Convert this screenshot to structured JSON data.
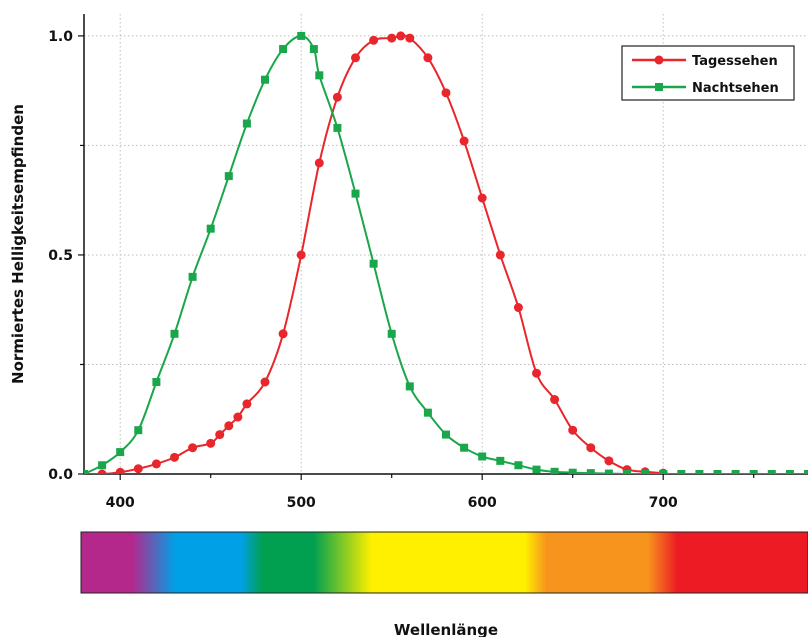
{
  "chart_data": {
    "type": "line",
    "title": "",
    "xlabel": "Wellenlänge",
    "ylabel": "Normiertes Helligkeitsempfinden",
    "xlim": [
      380,
      780
    ],
    "ylim": [
      0,
      1.05
    ],
    "x_ticks": [
      400,
      500,
      600,
      700
    ],
    "x_tick_labels": [
      "400",
      "500",
      "600",
      "700"
    ],
    "y_ticks": [
      0,
      0.5,
      1
    ],
    "y_tick_labels": [
      "0.0",
      "0.5",
      "1.0"
    ],
    "grid": true,
    "legend_position": "top-right",
    "series": [
      {
        "name": "Tagessehen",
        "color": "#e8262b",
        "marker": "circle",
        "x": [
          380,
          390,
          400,
          410,
          420,
          430,
          440,
          450,
          455,
          460,
          465,
          470,
          480,
          490,
          500,
          510,
          520,
          530,
          540,
          550,
          555,
          560,
          570,
          580,
          590,
          600,
          610,
          620,
          630,
          640,
          650,
          660,
          670,
          680,
          690,
          700
        ],
        "y": [
          0.0,
          0.0,
          0.004,
          0.012,
          0.023,
          0.038,
          0.06,
          0.07,
          0.09,
          0.11,
          0.13,
          0.16,
          0.21,
          0.32,
          0.5,
          0.71,
          0.86,
          0.95,
          0.99,
          0.995,
          1.0,
          0.995,
          0.95,
          0.87,
          0.76,
          0.63,
          0.5,
          0.38,
          0.23,
          0.17,
          0.1,
          0.06,
          0.03,
          0.01,
          0.005,
          0.002
        ]
      },
      {
        "name": "Nachtsehen",
        "color": "#1aa64a",
        "marker": "square",
        "x": [
          380,
          390,
          400,
          410,
          420,
          430,
          440,
          450,
          460,
          470,
          480,
          490,
          500,
          507,
          510,
          520,
          530,
          540,
          550,
          560,
          570,
          580,
          590,
          600,
          610,
          620,
          630,
          640,
          650,
          660,
          670,
          680,
          690,
          700,
          710,
          720,
          730,
          740,
          750,
          760,
          770,
          780
        ],
        "y": [
          0.0,
          0.02,
          0.05,
          0.1,
          0.21,
          0.32,
          0.45,
          0.56,
          0.68,
          0.8,
          0.9,
          0.97,
          1.0,
          0.97,
          0.91,
          0.79,
          0.64,
          0.48,
          0.32,
          0.2,
          0.14,
          0.09,
          0.06,
          0.04,
          0.03,
          0.02,
          0.01,
          0.005,
          0.003,
          0.002,
          0.001,
          0.0,
          0.0,
          0.0,
          0.0,
          0.0,
          0.0,
          0.0,
          0.0,
          0.0,
          0.0,
          0.0
        ]
      }
    ],
    "spectrum_colors": [
      "#b4288c",
      "#b4288c",
      "#00a0e6",
      "#00a0e6",
      "#00a050",
      "#00a050",
      "#fff000",
      "#fff000",
      "#f7941d",
      "#f7941d",
      "#ed1c24",
      "#ed1c24"
    ]
  }
}
